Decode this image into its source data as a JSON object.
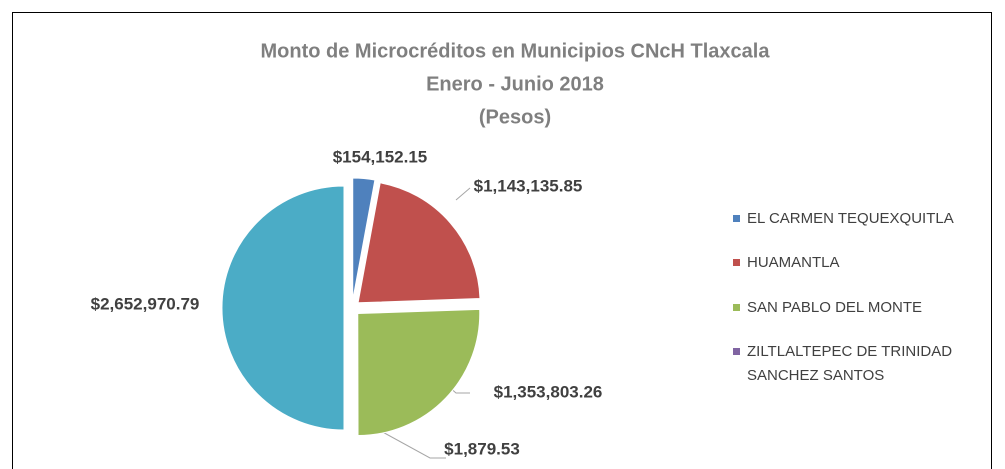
{
  "chart_data": {
    "type": "pie",
    "title": "Monto de Microcréditos en Municipios CNcH Tlaxcala",
    "subtitle": "Enero - Junio 2018",
    "unit_label": "(Pesos)",
    "categories": [
      "EL CARMEN TEQUEXQUITLA",
      "HUAMANTLA",
      "SAN PABLO DEL MONTE",
      "ZILTLALTEPEC DE TRINIDAD SANCHEZ SANTOS",
      null
    ],
    "values": [
      154152.15,
      1143135.85,
      1353803.26,
      1879.53,
      2652970.79
    ],
    "value_labels": [
      "$154,152.15",
      "$1,143,135.85",
      "$1,353,803.26",
      "$1,879.53",
      "$2,652,970.79"
    ],
    "colors": [
      "#4f81bd",
      "#c0504d",
      "#9bbb59",
      "#8064a2",
      "#4bacc6"
    ],
    "legend": "right"
  }
}
